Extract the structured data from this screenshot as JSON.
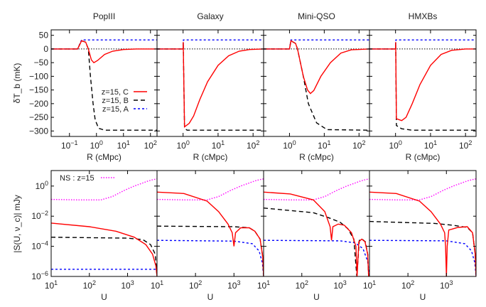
{
  "chart_data": [
    {
      "type": "line",
      "row": "top",
      "xlabel": "R (cMpc)",
      "ylabel": "δT_b (mK)",
      "xscale": "log",
      "ylim": [
        -320,
        70
      ],
      "yticks": [
        50,
        0,
        -50,
        -100,
        -150,
        -200,
        -250,
        -300
      ],
      "legend": {
        "placement": "center-left",
        "entries": [
          "z=15, C",
          "z=15, B",
          "z=15, A"
        ]
      },
      "series_style": {
        "C": {
          "color": "#ff0000",
          "dash": "solid"
        },
        "B": {
          "color": "#000000",
          "dash": "dashed"
        },
        "A": {
          "color": "#0000ff",
          "dash": "dotted"
        },
        "zero": {
          "color": "#000000",
          "dash": "dotted"
        }
      },
      "panels": [
        {
          "title": "PopIII",
          "xlim": [
            0.021,
            175
          ],
          "xticks": [
            "10^-1",
            "10^0",
            "10^1",
            "10^2"
          ],
          "xtick_values": [
            0.1,
            1,
            10,
            100
          ],
          "A": [
            [
              0.021,
              0
            ],
            [
              0.2,
              0
            ],
            [
              0.28,
              33
            ],
            [
              175,
              33
            ]
          ],
          "B": [
            [
              0.021,
              0
            ],
            [
              0.2,
              0
            ],
            [
              0.28,
              30
            ],
            [
              0.4,
              25
            ],
            [
              0.5,
              0
            ],
            [
              0.6,
              -100
            ],
            [
              0.75,
              -200
            ],
            [
              0.9,
              -260
            ],
            [
              1.2,
              -290
            ],
            [
              2,
              -297
            ],
            [
              175,
              -297
            ]
          ],
          "C": [
            [
              0.021,
              0
            ],
            [
              0.2,
              0
            ],
            [
              0.28,
              30
            ],
            [
              0.4,
              25
            ],
            [
              0.5,
              0
            ],
            [
              0.65,
              -40
            ],
            [
              0.8,
              -50
            ],
            [
              1.1,
              -42
            ],
            [
              2,
              -20
            ],
            [
              4,
              -8
            ],
            [
              10,
              -2
            ],
            [
              30,
              0
            ],
            [
              175,
              0
            ]
          ]
        },
        {
          "title": "Galaxy",
          "xlim": [
            0.18,
            200
          ],
          "xticks": [
            "10^0",
            "10^1",
            "10^2"
          ],
          "xtick_values": [
            1,
            10,
            100
          ],
          "A": [
            [
              0.18,
              0
            ],
            [
              1,
              0
            ],
            [
              1.02,
              33
            ],
            [
              200,
              33
            ]
          ],
          "B": [
            [
              0.18,
              0
            ],
            [
              1,
              0
            ],
            [
              1.01,
              25
            ],
            [
              1.1,
              -290
            ],
            [
              1.3,
              -297
            ],
            [
              200,
              -297
            ]
          ],
          "C": [
            [
              0.18,
              0
            ],
            [
              1,
              0
            ],
            [
              1.01,
              25
            ],
            [
              1.1,
              -285
            ],
            [
              1.5,
              -272
            ],
            [
              2,
              -245
            ],
            [
              3,
              -185
            ],
            [
              5,
              -120
            ],
            [
              10,
              -60
            ],
            [
              20,
              -25
            ],
            [
              40,
              -8
            ],
            [
              80,
              -2
            ],
            [
              200,
              0
            ]
          ]
        },
        {
          "title": "Mini-QSO",
          "xlim": [
            0.18,
            200
          ],
          "xticks": [
            "10^0",
            "10^1",
            "10^2"
          ],
          "xtick_values": [
            1,
            10,
            100
          ],
          "A": [
            [
              0.18,
              0
            ],
            [
              1,
              0
            ],
            [
              1.1,
              33
            ],
            [
              200,
              33
            ]
          ],
          "B": [
            [
              0.18,
              0
            ],
            [
              1,
              0
            ],
            [
              1.1,
              30
            ],
            [
              1.5,
              20
            ],
            [
              1.7,
              0
            ],
            [
              2.5,
              -100
            ],
            [
              3.5,
              -200
            ],
            [
              6,
              -270
            ],
            [
              12,
              -295
            ],
            [
              200,
              -297
            ]
          ],
          "C": [
            [
              0.18,
              0
            ],
            [
              1,
              0
            ],
            [
              1.1,
              30
            ],
            [
              1.5,
              20
            ],
            [
              1.7,
              0
            ],
            [
              2.5,
              -100
            ],
            [
              3.3,
              -150
            ],
            [
              4,
              -163
            ],
            [
              5,
              -152
            ],
            [
              8,
              -100
            ],
            [
              15,
              -50
            ],
            [
              30,
              -15
            ],
            [
              60,
              -3
            ],
            [
              200,
              0
            ]
          ]
        },
        {
          "title": "HMXBs",
          "xlim": [
            0.18,
            200
          ],
          "xticks": [
            "10^0",
            "10^1",
            "10^2"
          ],
          "xtick_values": [
            1,
            10,
            100
          ],
          "A": [
            [
              0.18,
              0
            ],
            [
              1,
              0
            ],
            [
              1.02,
              33
            ],
            [
              200,
              33
            ]
          ],
          "B": [
            [
              0.18,
              0
            ],
            [
              1,
              0
            ],
            [
              1.01,
              25
            ],
            [
              1.06,
              -280
            ],
            [
              1.5,
              -292
            ],
            [
              3,
              -297
            ],
            [
              200,
              -297
            ]
          ],
          "C": [
            [
              0.18,
              0
            ],
            [
              1,
              0
            ],
            [
              1.01,
              25
            ],
            [
              1.06,
              -255
            ],
            [
              1.5,
              -262
            ],
            [
              2,
              -250
            ],
            [
              3,
              -200
            ],
            [
              5,
              -130
            ],
            [
              10,
              -60
            ],
            [
              20,
              -20
            ],
            [
              40,
              -5
            ],
            [
              100,
              0
            ],
            [
              200,
              0
            ]
          ]
        }
      ]
    },
    {
      "type": "line",
      "row": "bottom",
      "xlabel": "U",
      "ylabel": "|S(U, ν_c)| mJy",
      "xscale": "log",
      "yscale": "log",
      "ylim": [
        1e-06,
        10.7
      ],
      "xlim": [
        10,
        5900
      ],
      "yticks": [
        "10^0",
        "10^-2",
        "10^-4",
        "10^-6"
      ],
      "ytick_values": [
        1,
        0.01,
        0.0001,
        1e-06
      ],
      "xticks": [
        "10^1",
        "10^2",
        "10^3"
      ],
      "xtick_values": [
        10,
        100,
        1000
      ],
      "legend": {
        "placement": "top-left",
        "entries": [
          "NS : z=15"
        ]
      },
      "NS": [
        [
          10,
          0.13
        ],
        [
          50,
          0.12
        ],
        [
          200,
          0.12
        ],
        [
          400,
          0.2
        ],
        [
          800,
          0.5
        ],
        [
          1500,
          1.0
        ],
        [
          2500,
          1.6
        ],
        [
          3500,
          2.2
        ],
        [
          4500,
          2.6
        ],
        [
          5900,
          3
        ]
      ],
      "panels": [
        {
          "C": [
            [
              10,
              0.0035
            ],
            [
              100,
              0.002
            ],
            [
              500,
              0.001
            ],
            [
              1500,
              0.0004
            ],
            [
              3000,
              0.00013
            ],
            [
              4500,
              3e-05
            ],
            [
              5500,
              5e-06
            ],
            [
              5900,
              1e-06
            ]
          ],
          "B": [
            [
              10,
              0.0004
            ],
            [
              1000,
              0.00035
            ],
            [
              2500,
              0.00028
            ],
            [
              4000,
              0.00013
            ],
            [
              5300,
              3e-05
            ],
            [
              5900,
              1e-06
            ]
          ],
          "A": [
            [
              10,
              3e-06
            ],
            [
              5900,
              3e-06
            ]
          ]
        },
        {
          "C": [
            [
              10,
              0.4
            ],
            [
              50,
              0.32
            ],
            [
              200,
              0.1
            ],
            [
              400,
              0.02
            ],
            [
              700,
              0.003
            ],
            [
              900,
              0.0008
            ],
            [
              1000,
              0.0001
            ],
            [
              1100,
              0.0008
            ],
            [
              1500,
              0.0017
            ],
            [
              2500,
              0.0017
            ],
            [
              3500,
              0.001
            ],
            [
              4800,
              0.0003
            ],
            [
              5600,
              2e-05
            ],
            [
              5900,
              1e-06
            ]
          ],
          "B": [
            [
              10,
              0.0022
            ],
            [
              1000,
              0.002
            ],
            [
              2500,
              0.0017
            ],
            [
              3500,
              0.001
            ],
            [
              4800,
              0.0003
            ],
            [
              5600,
              2e-05
            ],
            [
              5900,
              1e-06
            ]
          ],
          "A": [
            [
              10,
              0.00025
            ],
            [
              1000,
              0.00022
            ],
            [
              3000,
              0.00015
            ],
            [
              4500,
              5e-05
            ],
            [
              5500,
              8e-06
            ],
            [
              5900,
              1e-06
            ]
          ]
        },
        {
          "C": [
            [
              10,
              0.4
            ],
            [
              50,
              0.3
            ],
            [
              200,
              0.12
            ],
            [
              400,
              0.02
            ],
            [
              550,
              0.002
            ],
            [
              600,
              0.00025
            ],
            [
              650,
              0.002
            ],
            [
              900,
              0.003
            ],
            [
              1300,
              0.0025
            ],
            [
              2000,
              0.0008
            ],
            [
              2600,
              0.0001
            ],
            [
              2800,
              1e-06
            ],
            [
              3100,
              0.0002
            ],
            [
              3700,
              0.0003
            ],
            [
              4500,
              0.0002
            ],
            [
              5300,
              3e-05
            ],
            [
              5600,
              1e-06
            ]
          ],
          "B": [
            [
              10,
              0.035
            ],
            [
              200,
              0.017
            ],
            [
              500,
              0.008
            ],
            [
              1000,
              0.004
            ],
            [
              1600,
              0.0015
            ],
            [
              2300,
              0.0003
            ],
            [
              2750,
              1e-06
            ],
            [
              3200,
              0.00025
            ],
            [
              3800,
              0.0003
            ],
            [
              4600,
              0.0002
            ],
            [
              5300,
              3e-05
            ],
            [
              5600,
              1e-06
            ]
          ],
          "A": [
            [
              10,
              0.00025
            ],
            [
              1000,
              0.00023
            ],
            [
              2500,
              0.00017
            ],
            [
              4000,
              7e-05
            ],
            [
              5300,
              1e-05
            ],
            [
              5900,
              1e-06
            ]
          ]
        },
        {
          "C": [
            [
              10,
              0.4
            ],
            [
              50,
              0.32
            ],
            [
              200,
              0.1
            ],
            [
              400,
              0.02
            ],
            [
              700,
              0.003
            ],
            [
              900,
              0.0008
            ],
            [
              950,
              0.0001
            ],
            [
              1000,
              1e-06
            ],
            [
              1050,
              0.0001
            ],
            [
              1150,
              0.0012
            ],
            [
              2000,
              0.0018
            ],
            [
              3500,
              0.002
            ],
            [
              4800,
              0.0008
            ],
            [
              5600,
              3e-05
            ],
            [
              5900,
              1e-06
            ]
          ],
          "B": [
            [
              10,
              0.0045
            ],
            [
              500,
              0.0033
            ],
            [
              1500,
              0.0025
            ],
            [
              3500,
              0.0018
            ],
            [
              4800,
              0.0008
            ],
            [
              5600,
              3e-05
            ],
            [
              5900,
              1e-06
            ]
          ],
          "A": [
            [
              10,
              0.00025
            ],
            [
              1000,
              0.00023
            ],
            [
              3000,
              0.00015
            ],
            [
              4500,
              5e-05
            ],
            [
              5500,
              8e-06
            ],
            [
              5900,
              1e-06
            ]
          ]
        }
      ]
    }
  ]
}
